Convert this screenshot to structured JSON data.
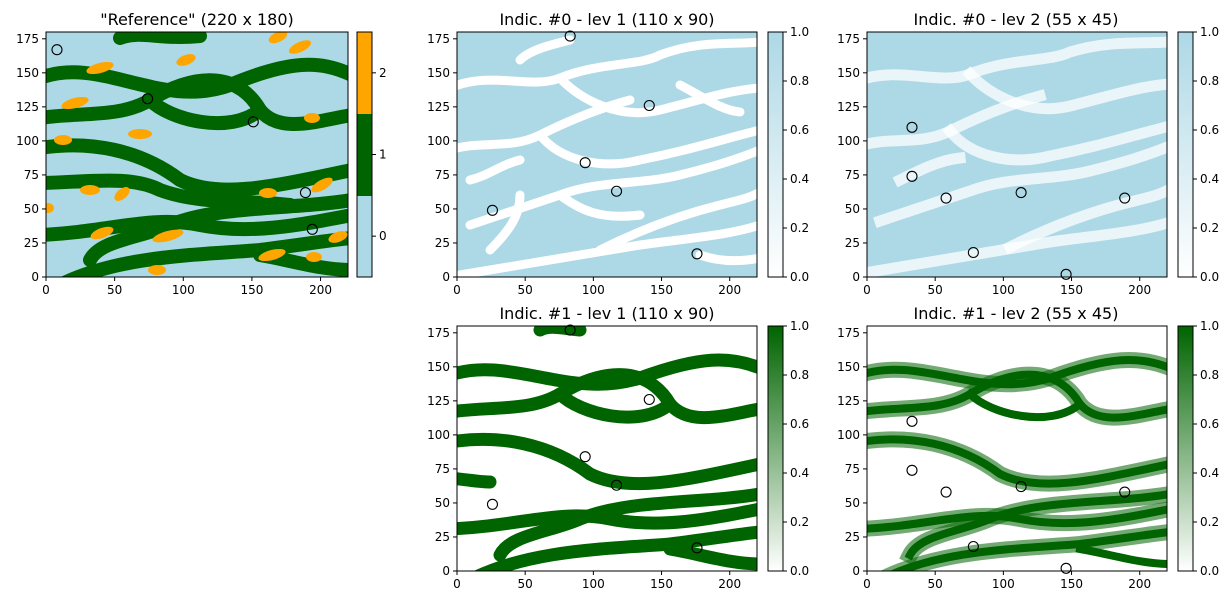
{
  "chart_data": [
    {
      "id": "ref",
      "type": "heatmap",
      "title": "\"Reference\" (220 x 180)",
      "xlim": [
        0,
        220
      ],
      "ylim": [
        0,
        180
      ],
      "xticks": [
        0,
        50,
        100,
        150,
        200
      ],
      "yticks": [
        0,
        25,
        50,
        75,
        100,
        125,
        150,
        175
      ],
      "grid": false,
      "colorbar": {
        "type": "discrete",
        "ticks": [
          0,
          1,
          2
        ],
        "colors": [
          "#add8e6",
          "#006400",
          "#ffa500"
        ]
      },
      "points": [
        [
          8,
          167
        ],
        [
          74,
          131
        ],
        [
          151,
          114
        ],
        [
          189,
          62
        ],
        [
          194,
          35
        ]
      ]
    },
    {
      "id": "i0l1",
      "type": "heatmap",
      "title": "Indic. #0 - lev 1 (110 x 90)",
      "xlim": [
        0,
        220
      ],
      "ylim": [
        0,
        180
      ],
      "xticks": [
        0,
        50,
        100,
        150,
        200
      ],
      "yticks": [
        0,
        25,
        50,
        75,
        100,
        125,
        150,
        175
      ],
      "grid": false,
      "colorbar": {
        "type": "continuous",
        "range": [
          0,
          1
        ],
        "ticks": [
          "0.0",
          "0.2",
          "0.4",
          "0.6",
          "0.8",
          "1.0"
        ],
        "colors": [
          "#ffffff",
          "#add8e6"
        ]
      },
      "points": [
        [
          83,
          177
        ],
        [
          141,
          126
        ],
        [
          94,
          84
        ],
        [
          117,
          63
        ],
        [
          26,
          49
        ],
        [
          176,
          17
        ]
      ]
    },
    {
      "id": "i0l2",
      "type": "heatmap",
      "title": "Indic. #0 - lev 2 (55 x 45)",
      "xlim": [
        0,
        220
      ],
      "ylim": [
        0,
        180
      ],
      "xticks": [
        0,
        50,
        100,
        150,
        200
      ],
      "yticks": [
        0,
        25,
        50,
        75,
        100,
        125,
        150,
        175
      ],
      "grid": false,
      "colorbar": {
        "type": "continuous",
        "range": [
          0,
          1
        ],
        "ticks": [
          "0.0",
          "0.2",
          "0.4",
          "0.6",
          "0.8",
          "1.0"
        ],
        "colors": [
          "#ffffff",
          "#add8e6"
        ]
      },
      "points": [
        [
          33,
          110
        ],
        [
          33,
          74
        ],
        [
          58,
          58
        ],
        [
          113,
          62
        ],
        [
          189,
          58
        ],
        [
          78,
          18
        ],
        [
          146,
          2
        ]
      ]
    },
    {
      "id": "i1l1",
      "type": "heatmap",
      "title": "Indic. #1 - lev 1 (110 x 90)",
      "xlim": [
        0,
        220
      ],
      "ylim": [
        0,
        180
      ],
      "xticks": [
        0,
        50,
        100,
        150,
        200
      ],
      "yticks": [
        0,
        25,
        50,
        75,
        100,
        125,
        150,
        175
      ],
      "grid": false,
      "colorbar": {
        "type": "continuous",
        "range": [
          0,
          1
        ],
        "ticks": [
          "0.0",
          "0.2",
          "0.4",
          "0.6",
          "0.8",
          "1.0"
        ],
        "colors": [
          "#ffffff",
          "#006400"
        ]
      },
      "points": [
        [
          83,
          177
        ],
        [
          141,
          126
        ],
        [
          94,
          84
        ],
        [
          117,
          63
        ],
        [
          26,
          49
        ],
        [
          176,
          17
        ]
      ]
    },
    {
      "id": "i1l2",
      "type": "heatmap",
      "title": "Indic. #1 - lev 2 (55 x 45)",
      "xlim": [
        0,
        220
      ],
      "ylim": [
        0,
        180
      ],
      "xticks": [
        0,
        50,
        100,
        150,
        200
      ],
      "yticks": [
        0,
        25,
        50,
        75,
        100,
        125,
        150,
        175
      ],
      "grid": false,
      "colorbar": {
        "type": "continuous",
        "range": [
          0,
          1
        ],
        "ticks": [
          "0.0",
          "0.2",
          "0.4",
          "0.6",
          "0.8",
          "1.0"
        ],
        "colors": [
          "#ffffff",
          "#006400"
        ]
      },
      "points": [
        [
          33,
          110
        ],
        [
          33,
          74
        ],
        [
          58,
          58
        ],
        [
          113,
          62
        ],
        [
          189,
          58
        ],
        [
          78,
          18
        ],
        [
          146,
          2
        ]
      ]
    }
  ]
}
